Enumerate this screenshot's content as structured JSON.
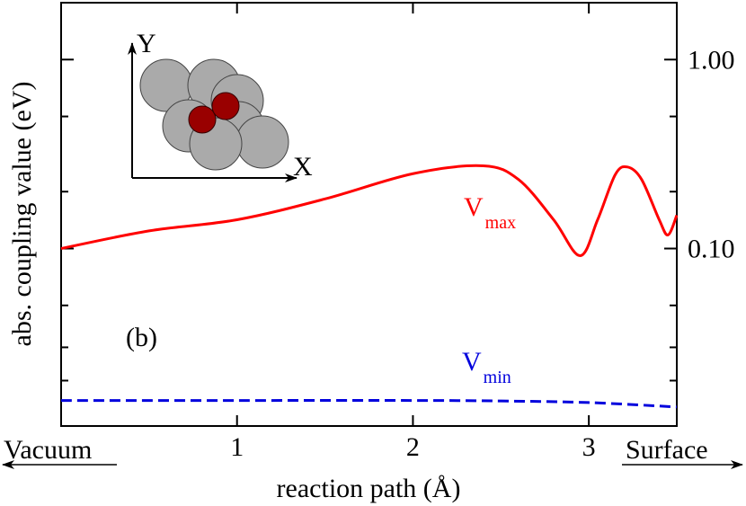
{
  "chart_data": {
    "type": "line",
    "y_label": "abs. coupling value (eV)",
    "x_label": "reaction path (Å)",
    "annotation": "(b)",
    "left_end_label": "Vacuum",
    "right_end_label": "Surface",
    "inset": {
      "x_label": "X",
      "y_label": "Y"
    },
    "xlim": [
      0,
      3.5
    ],
    "xticks": [
      1,
      2,
      3
    ],
    "ylim": [
      0.0115,
      2.0
    ],
    "log_y": true,
    "yticks": [
      {
        "value": 1,
        "label": "1.00"
      },
      {
        "value": 0.1,
        "label": "0.10"
      }
    ],
    "yminorticks": [
      0.5,
      0.2,
      0.05,
      0.03,
      0.02
    ],
    "series": [
      {
        "name_parts": [
          "V",
          "max"
        ],
        "color": "#ff0000",
        "dashed": false,
        "x": [
          0,
          0.5,
          1,
          1.5,
          2,
          2.4,
          2.6,
          2.8,
          2.95,
          3.05,
          3.15,
          3.22,
          3.3,
          3.4,
          3.45,
          3.5
        ],
        "values": [
          0.1,
          0.124,
          0.142,
          0.183,
          0.249,
          0.274,
          0.232,
          0.142,
          0.0916,
          0.142,
          0.246,
          0.27,
          0.232,
          0.142,
          0.118,
          0.15
        ]
      },
      {
        "name_parts": [
          "V",
          "min"
        ],
        "color": "#0000dd",
        "dashed": true,
        "x": [
          0,
          1,
          2,
          2.5,
          3,
          3.5
        ],
        "values": [
          0.0157,
          0.0157,
          0.0157,
          0.0156,
          0.0153,
          0.0145
        ]
      }
    ]
  }
}
